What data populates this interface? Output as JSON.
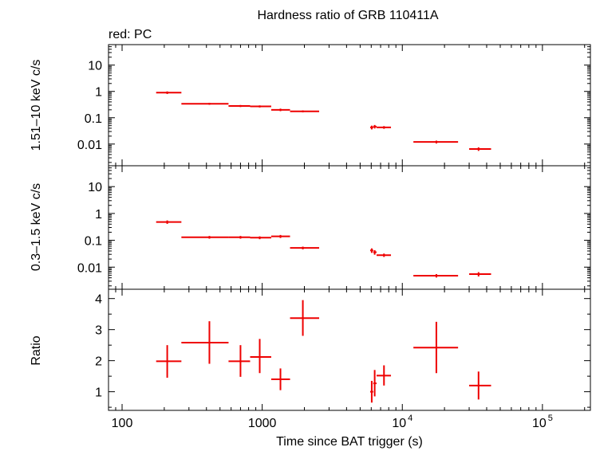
{
  "figure": {
    "title": "Hardness ratio of GRB 110411A",
    "legend": "red: PC"
  },
  "chart_data": [
    {
      "type": "scatter",
      "panel": "top",
      "ylabel": "1.51–10 keV c/s",
      "yscale": "log",
      "ylim": [
        0.0015,
        60
      ],
      "yticks": [
        0.01,
        0.1,
        1,
        10
      ],
      "ytick_labels": [
        "0.01",
        "0.1",
        "1",
        "10"
      ],
      "series": [
        {
          "color": "#ee0000",
          "points": [
            {
              "x": 210,
              "xlo": 175,
              "xhi": 265,
              "y": 0.9,
              "ylo": 0.8,
              "yhi": 1.0
            },
            {
              "x": 420,
              "xlo": 265,
              "xhi": 575,
              "y": 0.34,
              "ylo": 0.31,
              "yhi": 0.37
            },
            {
              "x": 700,
              "xlo": 575,
              "xhi": 820,
              "y": 0.28,
              "ylo": 0.255,
              "yhi": 0.305
            },
            {
              "x": 960,
              "xlo": 820,
              "xhi": 1160,
              "y": 0.27,
              "ylo": 0.245,
              "yhi": 0.295
            },
            {
              "x": 1350,
              "xlo": 1160,
              "xhi": 1580,
              "y": 0.2,
              "ylo": 0.178,
              "yhi": 0.222
            },
            {
              "x": 1950,
              "xlo": 1580,
              "xhi": 2550,
              "y": 0.175,
              "ylo": 0.16,
              "yhi": 0.19
            },
            {
              "x": 6050,
              "xlo": 5900,
              "xhi": 6200,
              "y": 0.043,
              "ylo": 0.036,
              "yhi": 0.05
            },
            {
              "x": 6350,
              "xlo": 6200,
              "xhi": 6550,
              "y": 0.046,
              "ylo": 0.039,
              "yhi": 0.053
            },
            {
              "x": 7400,
              "xlo": 6550,
              "xhi": 8300,
              "y": 0.043,
              "ylo": 0.038,
              "yhi": 0.048
            },
            {
              "x": 17500,
              "xlo": 12000,
              "xhi": 25000,
              "y": 0.012,
              "ylo": 0.0105,
              "yhi": 0.0135
            },
            {
              "x": 35000,
              "xlo": 30000,
              "xhi": 43000,
              "y": 0.0065,
              "ylo": 0.0055,
              "yhi": 0.0075
            }
          ]
        }
      ]
    },
    {
      "type": "scatter",
      "panel": "middle",
      "ylabel": "0.3–1.5 keV c/s",
      "yscale": "log",
      "ylim": [
        0.0015,
        60
      ],
      "yticks": [
        0.01,
        0.1,
        1,
        10
      ],
      "ytick_labels": [
        "0.01",
        "0.1",
        "1",
        "10"
      ],
      "series": [
        {
          "color": "#ee0000",
          "points": [
            {
              "x": 210,
              "xlo": 175,
              "xhi": 265,
              "y": 0.48,
              "ylo": 0.41,
              "yhi": 0.55
            },
            {
              "x": 420,
              "xlo": 265,
              "xhi": 575,
              "y": 0.13,
              "ylo": 0.115,
              "yhi": 0.145
            },
            {
              "x": 700,
              "xlo": 575,
              "xhi": 820,
              "y": 0.13,
              "ylo": 0.115,
              "yhi": 0.145
            },
            {
              "x": 960,
              "xlo": 820,
              "xhi": 1160,
              "y": 0.125,
              "ylo": 0.11,
              "yhi": 0.14
            },
            {
              "x": 1350,
              "xlo": 1160,
              "xhi": 1580,
              "y": 0.14,
              "ylo": 0.122,
              "yhi": 0.158
            },
            {
              "x": 1950,
              "xlo": 1580,
              "xhi": 2550,
              "y": 0.052,
              "ylo": 0.046,
              "yhi": 0.058
            },
            {
              "x": 6050,
              "xlo": 5900,
              "xhi": 6200,
              "y": 0.042,
              "ylo": 0.034,
              "yhi": 0.05
            },
            {
              "x": 6350,
              "xlo": 6200,
              "xhi": 6550,
              "y": 0.036,
              "ylo": 0.029,
              "yhi": 0.043
            },
            {
              "x": 7400,
              "xlo": 6550,
              "xhi": 8300,
              "y": 0.028,
              "ylo": 0.024,
              "yhi": 0.032
            },
            {
              "x": 17500,
              "xlo": 12000,
              "xhi": 25000,
              "y": 0.0048,
              "ylo": 0.0041,
              "yhi": 0.0055
            },
            {
              "x": 35000,
              "xlo": 30000,
              "xhi": 43000,
              "y": 0.0055,
              "ylo": 0.0045,
              "yhi": 0.0065
            }
          ]
        }
      ]
    },
    {
      "type": "scatter",
      "panel": "bottom",
      "ylabel": "Ratio",
      "yscale": "linear",
      "ylim": [
        0.4,
        4.3
      ],
      "yticks": [
        1,
        2,
        3,
        4
      ],
      "ytick_labels": [
        "1",
        "2",
        "3",
        "4"
      ],
      "xlabel": "Time since BAT trigger (s)",
      "xscale": "log",
      "xlim": [
        80,
        220000
      ],
      "xtick_labels": [
        "100",
        "1000",
        "10",
        "10"
      ],
      "xtick_exponents": [
        "",
        "",
        "4",
        "5"
      ],
      "series": [
        {
          "color": "#ee0000",
          "points": [
            {
              "x": 210,
              "xlo": 175,
              "xhi": 265,
              "y": 1.98,
              "ylo": 1.45,
              "yhi": 2.5
            },
            {
              "x": 420,
              "xlo": 265,
              "xhi": 575,
              "y": 2.58,
              "ylo": 1.9,
              "yhi": 3.27
            },
            {
              "x": 700,
              "xlo": 575,
              "xhi": 820,
              "y": 1.98,
              "ylo": 1.48,
              "yhi": 2.5
            },
            {
              "x": 960,
              "xlo": 820,
              "xhi": 1160,
              "y": 2.12,
              "ylo": 1.6,
              "yhi": 2.7
            },
            {
              "x": 1350,
              "xlo": 1160,
              "xhi": 1580,
              "y": 1.4,
              "ylo": 1.05,
              "yhi": 1.75
            },
            {
              "x": 1950,
              "xlo": 1580,
              "xhi": 2550,
              "y": 3.37,
              "ylo": 2.8,
              "yhi": 3.95
            },
            {
              "x": 6050,
              "xlo": 5900,
              "xhi": 6200,
              "y": 1.0,
              "ylo": 0.65,
              "yhi": 1.35
            },
            {
              "x": 6350,
              "xlo": 6200,
              "xhi": 6550,
              "y": 1.27,
              "ylo": 0.85,
              "yhi": 1.7
            },
            {
              "x": 7400,
              "xlo": 6550,
              "xhi": 8300,
              "y": 1.52,
              "ylo": 1.2,
              "yhi": 1.85
            },
            {
              "x": 17500,
              "xlo": 12000,
              "xhi": 25000,
              "y": 2.42,
              "ylo": 1.6,
              "yhi": 3.25
            },
            {
              "x": 35000,
              "xlo": 30000,
              "xhi": 43000,
              "y": 1.2,
              "ylo": 0.75,
              "yhi": 1.65
            }
          ]
        }
      ]
    }
  ]
}
